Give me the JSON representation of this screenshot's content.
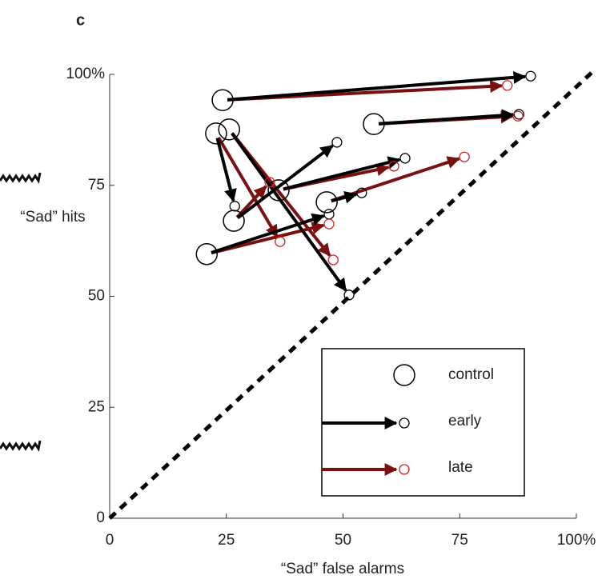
{
  "chart_data": {
    "type": "arrow-scatter",
    "panel_label": "c",
    "xlabel": "“Sad” false alarms",
    "ylabel": "“Sad” hits",
    "xlim": [
      0,
      100
    ],
    "ylim": [
      0,
      100
    ],
    "xticks": [
      0,
      25,
      50,
      75,
      {
        "value": 100,
        "label": "100%"
      }
    ],
    "yticks": [
      0,
      25,
      50,
      75,
      {
        "value": 100,
        "label": "100%"
      }
    ],
    "legend": "lower right",
    "series": [
      {
        "name": "control",
        "color": "#000000",
        "x": [
          24.2,
          22.8,
          25.6,
          56.6,
          36.2,
          26.6,
          46.5,
          20.8
        ],
        "values": [
          94.2,
          86.7,
          87.6,
          88.8,
          73.9,
          67.0,
          71.2,
          59.5
        ]
      },
      {
        "name": "early",
        "color": "#000000",
        "x": [
          90.2,
          26.8,
          51.3,
          87.7,
          63.3,
          48.7,
          54.0,
          47.0
        ],
        "values": [
          99.6,
          70.3,
          50.3,
          91.0,
          81.1,
          84.7,
          73.3,
          68.5
        ]
      },
      {
        "name": "late",
        "color": "#d02020",
        "x": [
          85.2,
          36.5,
          47.9,
          87.5,
          60.9,
          34.3,
          76.0,
          47.0
        ],
        "values": [
          97.5,
          62.3,
          58.2,
          90.6,
          79.3,
          75.7,
          81.4,
          66.3
        ]
      }
    ]
  }
}
